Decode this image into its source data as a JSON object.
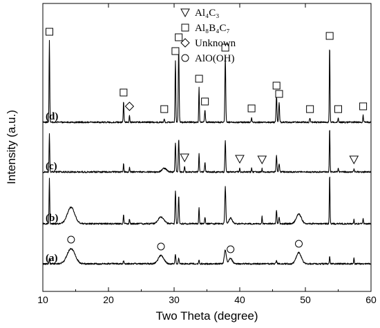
{
  "chart_data": {
    "type": "line",
    "xlabel": "Two Theta (degree)",
    "ylabel": "Intensity (a.u.)",
    "xlim": [
      10,
      60
    ],
    "xticks": [
      10,
      20,
      30,
      40,
      50,
      60
    ],
    "yticks": "none",
    "grid": false,
    "legend_position": "top-left",
    "legend": [
      {
        "label": "Al4C3",
        "marker": "triangle-down"
      },
      {
        "label": "Al8B4C7",
        "marker": "square"
      },
      {
        "label": "Unknown",
        "marker": "diamond"
      },
      {
        "label": "AlO(OH)",
        "marker": "circle"
      }
    ],
    "series": [
      {
        "name": "(a)",
        "baseline": 0,
        "peaks": [
          {
            "x": 11.0,
            "h": 8,
            "w": 0.12
          },
          {
            "x": 14.3,
            "h": 22,
            "w": 1.4
          },
          {
            "x": 22.3,
            "h": 5,
            "w": 0.12
          },
          {
            "x": 28.0,
            "h": 12,
            "w": 1.0
          },
          {
            "x": 30.2,
            "h": 14,
            "w": 0.15
          },
          {
            "x": 30.7,
            "h": 8,
            "w": 0.15
          },
          {
            "x": 33.8,
            "h": 6,
            "w": 0.12
          },
          {
            "x": 37.8,
            "h": 20,
            "w": 0.35
          },
          {
            "x": 38.6,
            "h": 8,
            "w": 0.6
          },
          {
            "x": 45.6,
            "h": 5,
            "w": 0.15
          },
          {
            "x": 49.0,
            "h": 16,
            "w": 0.9
          },
          {
            "x": 53.7,
            "h": 11,
            "w": 0.12
          },
          {
            "x": 57.4,
            "h": 9,
            "w": 0.1
          }
        ]
      },
      {
        "name": "(b)",
        "baseline": 58,
        "peaks": [
          {
            "x": 11.0,
            "h": 65,
            "w": 0.12
          },
          {
            "x": 14.3,
            "h": 24,
            "w": 1.3
          },
          {
            "x": 22.3,
            "h": 14,
            "w": 0.12
          },
          {
            "x": 23.2,
            "h": 7,
            "w": 0.12
          },
          {
            "x": 28.0,
            "h": 10,
            "w": 1.0
          },
          {
            "x": 30.2,
            "h": 48,
            "w": 0.15
          },
          {
            "x": 30.7,
            "h": 40,
            "w": 0.15
          },
          {
            "x": 33.8,
            "h": 24,
            "w": 0.12
          },
          {
            "x": 34.7,
            "h": 10,
            "w": 0.15
          },
          {
            "x": 37.8,
            "h": 53,
            "w": 0.18
          },
          {
            "x": 38.6,
            "h": 8,
            "w": 0.6
          },
          {
            "x": 43.4,
            "h": 12,
            "w": 0.1
          },
          {
            "x": 45.6,
            "h": 20,
            "w": 0.15
          },
          {
            "x": 46.0,
            "h": 10,
            "w": 0.15
          },
          {
            "x": 49.0,
            "h": 14,
            "w": 0.9
          },
          {
            "x": 53.7,
            "h": 72,
            "w": 0.12
          },
          {
            "x": 57.4,
            "h": 6,
            "w": 0.1
          },
          {
            "x": 58.8,
            "h": 7,
            "w": 0.12
          }
        ]
      },
      {
        "name": "(c)",
        "baseline": 133,
        "peaks": [
          {
            "x": 11.0,
            "h": 55,
            "w": 0.12
          },
          {
            "x": 22.3,
            "h": 12,
            "w": 0.12
          },
          {
            "x": 23.2,
            "h": 6,
            "w": 0.12
          },
          {
            "x": 28.5,
            "h": 5,
            "w": 0.8
          },
          {
            "x": 30.2,
            "h": 42,
            "w": 0.15
          },
          {
            "x": 30.7,
            "h": 48,
            "w": 0.15
          },
          {
            "x": 31.6,
            "h": 8,
            "w": 0.12
          },
          {
            "x": 33.8,
            "h": 27,
            "w": 0.12
          },
          {
            "x": 34.7,
            "h": 13,
            "w": 0.15
          },
          {
            "x": 37.8,
            "h": 45,
            "w": 0.15
          },
          {
            "x": 40.0,
            "h": 6,
            "w": 0.12
          },
          {
            "x": 41.8,
            "h": 5,
            "w": 0.12
          },
          {
            "x": 43.4,
            "h": 5,
            "w": 0.1
          },
          {
            "x": 45.6,
            "h": 23,
            "w": 0.15
          },
          {
            "x": 46.0,
            "h": 12,
            "w": 0.15
          },
          {
            "x": 53.7,
            "h": 65,
            "w": 0.12
          },
          {
            "x": 55.0,
            "h": 5,
            "w": 0.12
          },
          {
            "x": 57.4,
            "h": 5,
            "w": 0.1
          }
        ]
      },
      {
        "name": "(d)",
        "baseline": 205,
        "peaks": [
          {
            "x": 11.0,
            "h": 118,
            "w": 0.12
          },
          {
            "x": 22.3,
            "h": 30,
            "w": 0.12
          },
          {
            "x": 23.2,
            "h": 10,
            "w": 0.12
          },
          {
            "x": 28.5,
            "h": 6,
            "w": 0.12
          },
          {
            "x": 30.2,
            "h": 90,
            "w": 0.13
          },
          {
            "x": 30.7,
            "h": 110,
            "w": 0.15
          },
          {
            "x": 33.8,
            "h": 50,
            "w": 0.12
          },
          {
            "x": 34.7,
            "h": 17,
            "w": 0.15
          },
          {
            "x": 37.8,
            "h": 95,
            "w": 0.15
          },
          {
            "x": 41.8,
            "h": 7,
            "w": 0.12
          },
          {
            "x": 45.6,
            "h": 40,
            "w": 0.15
          },
          {
            "x": 46.0,
            "h": 28,
            "w": 0.15
          },
          {
            "x": 50.7,
            "h": 6,
            "w": 0.15
          },
          {
            "x": 53.7,
            "h": 112,
            "w": 0.12
          },
          {
            "x": 55.0,
            "h": 6,
            "w": 0.12
          },
          {
            "x": 58.8,
            "h": 10,
            "w": 0.12
          }
        ]
      }
    ],
    "annotations": [
      {
        "marker": "circle",
        "series": "(a)",
        "x": 14.3
      },
      {
        "marker": "circle",
        "series": "(a)",
        "x": 28.0
      },
      {
        "marker": "circle",
        "series": "(a)",
        "x": 38.6
      },
      {
        "marker": "circle",
        "series": "(a)",
        "x": 49.0
      },
      {
        "marker": "triangle-down",
        "series": "(c)",
        "x": 31.6
      },
      {
        "marker": "triangle-down",
        "series": "(c)",
        "x": 40.0
      },
      {
        "marker": "triangle-down",
        "series": "(c)",
        "x": 43.4
      },
      {
        "marker": "triangle-down",
        "series": "(c)",
        "x": 57.4
      },
      {
        "marker": "square",
        "series": "(d)",
        "x": 11.0
      },
      {
        "marker": "square",
        "series": "(d)",
        "x": 22.3
      },
      {
        "marker": "diamond",
        "series": "(d)",
        "x": 23.2
      },
      {
        "marker": "square",
        "series": "(d)",
        "x": 28.5
      },
      {
        "marker": "square",
        "series": "(d)",
        "x": 30.2
      },
      {
        "marker": "square",
        "series": "(d)",
        "x": 30.7
      },
      {
        "marker": "square",
        "series": "(d)",
        "x": 33.8
      },
      {
        "marker": "square",
        "series": "(d)",
        "x": 34.7
      },
      {
        "marker": "square",
        "series": "(d)",
        "x": 37.8
      },
      {
        "marker": "square",
        "series": "(d)",
        "x": 41.8
      },
      {
        "marker": "square",
        "series": "(d)",
        "x": 45.6
      },
      {
        "marker": "square",
        "series": "(d)",
        "x": 46.0
      },
      {
        "marker": "square",
        "series": "(d)",
        "x": 50.7
      },
      {
        "marker": "square",
        "series": "(d)",
        "x": 53.7
      },
      {
        "marker": "square",
        "series": "(d)",
        "x": 55.0
      },
      {
        "marker": "square",
        "series": "(d)",
        "x": 58.8
      }
    ]
  }
}
